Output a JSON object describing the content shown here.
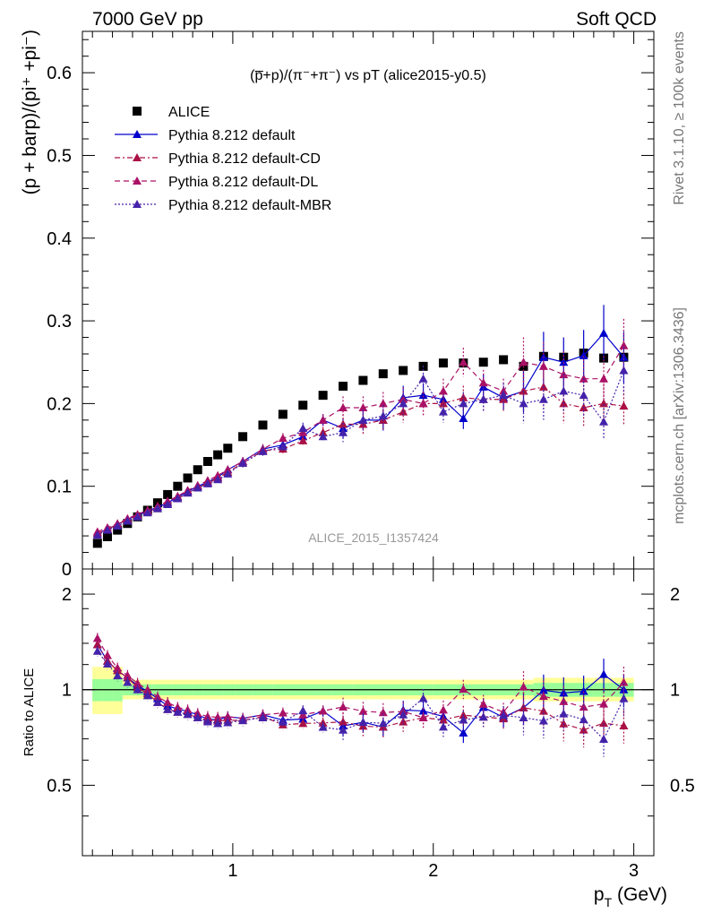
{
  "header": {
    "left": "7000 GeV pp",
    "right": "Soft QCD"
  },
  "side_labels": {
    "rivet": "Rivet 3.1.10, ≥ 100k events",
    "mcplots": "mcplots.cern.ch [arXiv:1306.3436]"
  },
  "watermark": "ALICE_2015_I1357424",
  "colors": {
    "alice": "#000000",
    "default": "#0000cc",
    "cd": "#aa1144",
    "dl": "#aa1166",
    "mbr": "#4422aa",
    "band_inner": "#99ff99",
    "band_outer": "#ffff99"
  },
  "chart_data": [
    {
      "type": "scatter",
      "title": "(p̅+p)/(π⁻+π⁻) vs pT (alice2015-y0.5)",
      "ylabel": "(p + barp)/(pi⁺ +pi⁻)",
      "xlabel": "p_T (GeV)",
      "xlim": [
        0.25,
        3.1
      ],
      "ylim": [
        0,
        0.65
      ],
      "yticks": [
        0,
        0.1,
        0.2,
        0.3,
        0.4,
        0.5,
        0.6
      ],
      "ytick_labels": [
        "0",
        "0.1",
        "0.2",
        "0.3",
        "0.4",
        "0.5",
        "0.6"
      ],
      "legend_position": "top-left",
      "x": [
        0.325,
        0.375,
        0.425,
        0.475,
        0.525,
        0.575,
        0.625,
        0.675,
        0.725,
        0.775,
        0.825,
        0.875,
        0.925,
        0.975,
        1.05,
        1.15,
        1.25,
        1.35,
        1.45,
        1.55,
        1.65,
        1.75,
        1.85,
        1.95,
        2.05,
        2.15,
        2.25,
        2.35,
        2.45,
        2.55,
        2.65,
        2.75,
        2.85,
        2.95
      ],
      "series": [
        {
          "name": "ALICE",
          "marker": "square",
          "values": [
            0.031,
            0.039,
            0.047,
            0.055,
            0.063,
            0.071,
            0.08,
            0.09,
            0.1,
            0.11,
            0.12,
            0.13,
            0.138,
            0.146,
            0.16,
            0.174,
            0.187,
            0.198,
            0.21,
            0.221,
            0.228,
            0.236,
            0.24,
            0.245,
            0.249,
            0.249,
            0.25,
            0.253,
            0.245,
            0.257,
            0.256,
            0.261,
            0.255,
            0.256
          ]
        },
        {
          "name": "Pythia 8.212 default",
          "marker": "triangle",
          "line": "solid",
          "values": [
            0.043,
            0.048,
            0.054,
            0.06,
            0.065,
            0.07,
            0.075,
            0.08,
            0.087,
            0.094,
            0.1,
            0.105,
            0.111,
            0.12,
            0.13,
            0.145,
            0.15,
            0.16,
            0.18,
            0.17,
            0.18,
            0.18,
            0.207,
            0.21,
            0.205,
            0.182,
            0.22,
            0.207,
            0.215,
            0.256,
            0.25,
            0.258,
            0.285,
            0.256
          ]
        },
        {
          "name": "Pythia 8.212 default-CD",
          "marker": "triangle",
          "line": "dash-dot",
          "values": [
            0.043,
            0.048,
            0.054,
            0.06,
            0.064,
            0.069,
            0.073,
            0.078,
            0.085,
            0.092,
            0.098,
            0.104,
            0.11,
            0.117,
            0.128,
            0.143,
            0.145,
            0.155,
            0.165,
            0.175,
            0.175,
            0.18,
            0.19,
            0.2,
            0.2,
            0.207,
            0.205,
            0.205,
            0.215,
            0.22,
            0.2,
            0.195,
            0.2,
            0.197
          ]
        },
        {
          "name": "Pythia 8.212 default-DL",
          "marker": "triangle",
          "line": "dashed",
          "values": [
            0.045,
            0.05,
            0.055,
            0.061,
            0.066,
            0.071,
            0.076,
            0.082,
            0.088,
            0.095,
            0.101,
            0.107,
            0.113,
            0.12,
            0.13,
            0.145,
            0.158,
            0.165,
            0.18,
            0.195,
            0.195,
            0.2,
            0.205,
            0.2,
            0.215,
            0.25,
            0.225,
            0.215,
            0.25,
            0.245,
            0.235,
            0.23,
            0.23,
            0.27
          ]
        },
        {
          "name": "Pythia 8.212 default-MBR",
          "marker": "triangle",
          "line": "dotted",
          "values": [
            0.041,
            0.047,
            0.052,
            0.058,
            0.063,
            0.068,
            0.073,
            0.078,
            0.085,
            0.092,
            0.098,
            0.103,
            0.108,
            0.115,
            0.128,
            0.142,
            0.148,
            0.17,
            0.16,
            0.165,
            0.18,
            0.185,
            0.2,
            0.23,
            0.19,
            0.2,
            0.205,
            0.21,
            0.2,
            0.205,
            0.215,
            0.21,
            0.178,
            0.24
          ]
        }
      ]
    },
    {
      "type": "scatter",
      "ylabel": "Ratio to ALICE",
      "xlabel": "p_T (GeV)",
      "xlim": [
        0.25,
        3.1
      ],
      "ylim": [
        0.3,
        2.4
      ],
      "yscale": "log",
      "yticks": [
        0.5,
        1,
        2
      ],
      "ytick_labels": [
        "0.5",
        "1",
        "2"
      ],
      "xticks": [
        1,
        2,
        3
      ],
      "xtick_labels": [
        "1",
        "2",
        "3"
      ],
      "reference_line": 1
    }
  ]
}
